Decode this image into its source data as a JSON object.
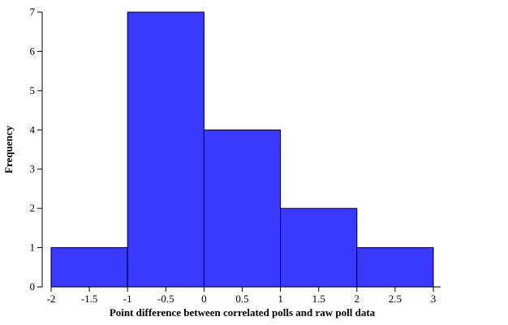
{
  "chart_data": {
    "type": "bar",
    "variant": "histogram",
    "title": "",
    "xlabel": "Point difference between correlated polls and raw poll data",
    "ylabel": "Frequency",
    "bins": [
      {
        "start": -2,
        "end": -1,
        "value": 1
      },
      {
        "start": -1,
        "end": 0,
        "value": 7
      },
      {
        "start": 0,
        "end": 1,
        "value": 4
      },
      {
        "start": 1,
        "end": 2,
        "value": 2
      },
      {
        "start": 2,
        "end": 3,
        "value": 1
      }
    ],
    "xlim": [
      -2,
      3
    ],
    "ylim": [
      0,
      7
    ],
    "xticks": [
      "-2",
      "-1.5",
      "-1",
      "-0.5",
      "0",
      "0.5",
      "1",
      "1.5",
      "2",
      "2.5",
      "3"
    ],
    "yticks": [
      "0",
      "1",
      "2",
      "3",
      "4",
      "5",
      "6",
      "7"
    ],
    "bar_color": "#3939ff",
    "bar_edge_color": "#000000",
    "grid": false,
    "legend": "none"
  }
}
